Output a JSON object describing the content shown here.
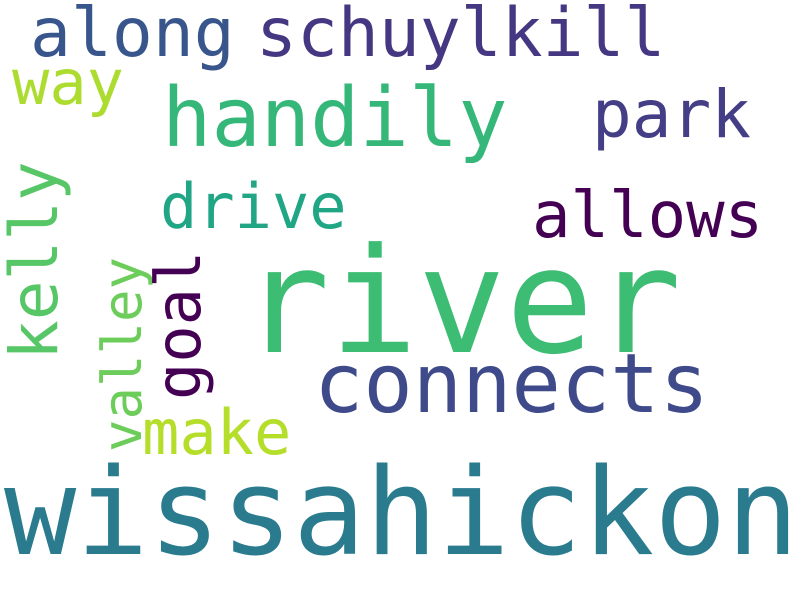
{
  "words": {
    "river": {
      "text": "river",
      "color": "#3dbc74"
    },
    "wissahickon": {
      "text": "wissahickon",
      "color": "#2a7b8e"
    },
    "connects": {
      "text": "connects",
      "color": "#3e4a89"
    },
    "handily": {
      "text": "handily",
      "color": "#35b779"
    },
    "schuylkill": {
      "text": "schuylkill",
      "color": "#453781"
    },
    "along": {
      "text": "along",
      "color": "#39568c"
    },
    "park": {
      "text": "park",
      "color": "#433e85"
    },
    "allows": {
      "text": "allows",
      "color": "#440154"
    },
    "drive": {
      "text": "drive",
      "color": "#21a685"
    },
    "kelly": {
      "text": "kelly",
      "color": "#56c667"
    },
    "valley": {
      "text": "valley",
      "color": "#6ccd5a"
    },
    "goal": {
      "text": "goal",
      "color": "#440154"
    },
    "make": {
      "text": "make",
      "color": "#b5de2b"
    },
    "way": {
      "text": "way",
      "color": "#addc30"
    }
  }
}
